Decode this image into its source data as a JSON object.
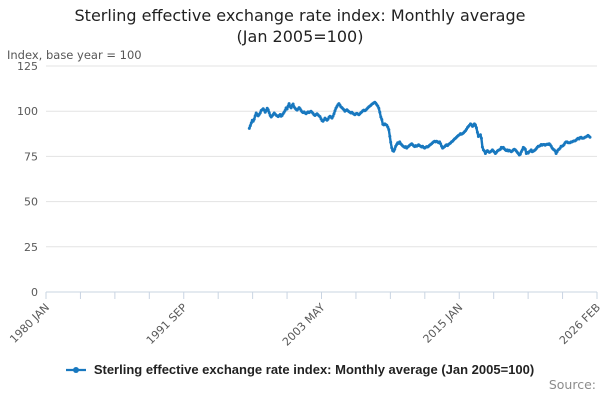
{
  "page": {
    "background": "#ffffff"
  },
  "header": {
    "title_line1": "Sterling effective exchange rate index: Monthly average",
    "title_line2": "(Jan 2005=100)",
    "axis_unit_note": "Index, base year = 100"
  },
  "legend": {
    "label": "Sterling effective exchange rate index: Monthly average (Jan 2005=100)",
    "marker": "line-with-dot-icon"
  },
  "footer": {
    "source_label": "Source:"
  },
  "colors": {
    "line": "#1878bf",
    "grid": "#e3e3e3",
    "axis": "#c9d4e2",
    "title_text": "#222222",
    "axis_text": "#595959",
    "source_text": "#8c8c8c"
  },
  "chart_data": {
    "type": "line",
    "title": "Sterling effective exchange rate index: Monthly average (Jan 2005=100)",
    "ylabel": "Index, base year = 100",
    "xlabel": "",
    "ylim": [
      0,
      125
    ],
    "y_ticks": [
      0,
      25,
      50,
      75,
      100,
      125
    ],
    "grid": "horizontal",
    "legend_position": "bottom",
    "x_axis": {
      "start": "1980 JAN",
      "end": "2026 FEB",
      "total_months": 553,
      "tick_count": 17,
      "labeled_ticks": [
        {
          "tick_index": 0,
          "label": "1980 JAN"
        },
        {
          "tick_index": 4,
          "label": "1991 SEP"
        },
        {
          "tick_index": 8,
          "label": "2003 MAY"
        },
        {
          "tick_index": 12,
          "label": "2015 JAN"
        },
        {
          "tick_index": 16,
          "label": "2026 FEB"
        }
      ]
    },
    "series": [
      {
        "name": "Sterling effective exchange rate index: Monthly average (Jan 2005=100)",
        "color": "#1878bf",
        "frequency": "monthly",
        "start_month": "1997 JAN",
        "start_month_offset": 204,
        "values": [
          90.5,
          92.0,
          93.5,
          95.0,
          94.4,
          95.6,
          97.4,
          99.0,
          98.2,
          97.4,
          98.2,
          99.0,
          100.4,
          100.8,
          101.4,
          100.6,
          99.4,
          100.2,
          101.6,
          100.8,
          99.2,
          97.6,
          96.8,
          97.4,
          98.2,
          99.0,
          98.4,
          97.8,
          97.4,
          97.0,
          97.6,
          98.2,
          97.2,
          97.6,
          98.6,
          99.4,
          100.4,
          101.8,
          101.2,
          102.8,
          104.2,
          102.6,
          101.8,
          103.2,
          104.0,
          102.4,
          101.6,
          101.0,
          100.6,
          101.2,
          102.0,
          101.4,
          100.4,
          99.6,
          99.2,
          99.6,
          99.0,
          98.6,
          99.2,
          99.6,
          99.2,
          99.6,
          100.0,
          99.4,
          98.8,
          98.0,
          97.6,
          98.2,
          98.6,
          98.0,
          97.4,
          97.0,
          95.8,
          94.8,
          94.4,
          95.2,
          96.2,
          95.6,
          95.0,
          95.6,
          96.6,
          97.2,
          96.6,
          96.2,
          97.2,
          98.6,
          100.2,
          101.6,
          102.6,
          103.6,
          104.2,
          103.4,
          102.4,
          102.0,
          101.4,
          100.8,
          100.0,
          100.4,
          100.8,
          100.2,
          99.8,
          99.4,
          99.0,
          99.4,
          98.8,
          98.4,
          98.0,
          98.6,
          98.8,
          98.4,
          98.0,
          98.6,
          99.2,
          99.6,
          100.2,
          100.6,
          100.2,
          100.6,
          101.2,
          101.8,
          102.4,
          102.8,
          103.2,
          103.8,
          104.2,
          104.6,
          105.0,
          104.4,
          103.6,
          102.8,
          101.6,
          99.4,
          96.8,
          95.4,
          92.8,
          92.4,
          93.0,
          92.6,
          92.2,
          91.2,
          89.8,
          86.2,
          82.8,
          79.8,
          78.2,
          77.8,
          79.0,
          80.6,
          81.6,
          82.6,
          82.2,
          83.0,
          82.0,
          81.4,
          80.8,
          80.4,
          80.0,
          80.4,
          79.6,
          80.2,
          80.6,
          81.2,
          81.6,
          82.0,
          81.4,
          80.8,
          80.4,
          81.0,
          80.6,
          81.0,
          81.4,
          81.0,
          80.6,
          80.2,
          80.6,
          80.0,
          79.6,
          80.0,
          80.4,
          80.2,
          80.6,
          81.2,
          81.6,
          82.0,
          82.6,
          83.0,
          83.4,
          83.0,
          83.4,
          83.0,
          82.6,
          83.0,
          82.0,
          80.6,
          79.6,
          80.0,
          80.4,
          81.0,
          81.4,
          81.0,
          81.6,
          82.0,
          82.4,
          83.0,
          83.4,
          84.0,
          84.6,
          85.0,
          85.6,
          86.2,
          86.6,
          87.0,
          87.6,
          87.2,
          87.6,
          88.0,
          88.6,
          89.2,
          90.0,
          91.0,
          91.6,
          92.2,
          93.0,
          92.6,
          91.6,
          92.0,
          93.0,
          92.4,
          90.8,
          88.4,
          86.0,
          86.4,
          87.0,
          85.0,
          80.2,
          78.6,
          78.0,
          76.6,
          77.6,
          78.2,
          77.6,
          77.2,
          77.6,
          78.0,
          78.6,
          78.0,
          77.4,
          76.6,
          77.2,
          78.0,
          78.4,
          78.6,
          79.0,
          80.0,
          79.6,
          80.0,
          79.2,
          78.6,
          78.2,
          78.6,
          78.0,
          78.4,
          78.0,
          77.6,
          78.0,
          78.6,
          79.0,
          78.6,
          78.0,
          77.2,
          76.6,
          75.8,
          76.2,
          77.6,
          78.6,
          80.0,
          79.6,
          79.0,
          76.6,
          77.2,
          76.8,
          77.6,
          78.0,
          78.6,
          77.6,
          77.8,
          78.2,
          78.6,
          79.2,
          80.0,
          80.6,
          80.6,
          81.0,
          81.6,
          81.2,
          81.6,
          81.6,
          81.2,
          81.6,
          81.8,
          81.6,
          82.0,
          81.4,
          80.6,
          79.6,
          79.0,
          78.6,
          78.0,
          76.6,
          77.6,
          78.6,
          79.0,
          79.6,
          80.6,
          80.6,
          81.0,
          81.6,
          82.6,
          83.0,
          83.0,
          82.6,
          82.6,
          82.6,
          83.0,
          83.0,
          83.4,
          83.6,
          83.6,
          84.0,
          84.6,
          85.0,
          84.6,
          85.4,
          85.6,
          85.0,
          85.0,
          85.2,
          85.6,
          85.8,
          86.2,
          86.6,
          86.2,
          85.6
        ]
      }
    ]
  }
}
